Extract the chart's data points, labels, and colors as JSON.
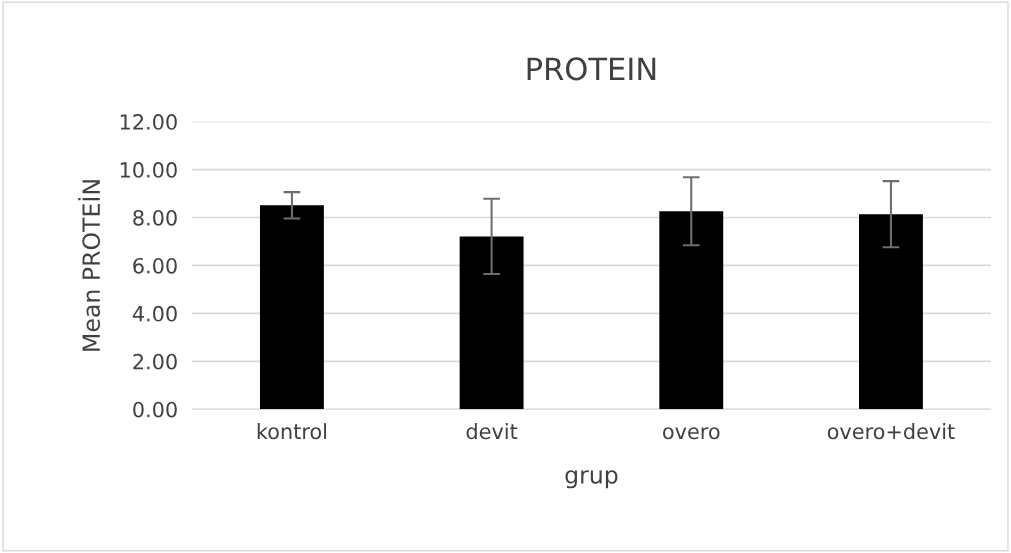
{
  "chart_data": {
    "type": "bar",
    "title": "PROTEIN",
    "xlabel": "grup",
    "ylabel": "Mean PROTEİN",
    "categories": [
      "kontrol",
      "devit",
      "overo",
      "overo+devit"
    ],
    "values": [
      8.51,
      7.21,
      8.26,
      8.14
    ],
    "errors": [
      0.55,
      1.57,
      1.42,
      1.38
    ],
    "colors": [
      "#000000",
      "#000000",
      "#000000",
      "#000000"
    ],
    "ylim": [
      0,
      12
    ],
    "yticks": [
      {
        "value": 0,
        "label": "0.00"
      },
      {
        "value": 2,
        "label": "2.00"
      },
      {
        "value": 4,
        "label": "4.00"
      },
      {
        "value": 6,
        "label": "6.00"
      },
      {
        "value": 8,
        "label": "8.00"
      },
      {
        "value": 10,
        "label": "10.00"
      },
      {
        "value": 12,
        "label": "12.00"
      }
    ],
    "grid": "y",
    "legend": false
  }
}
